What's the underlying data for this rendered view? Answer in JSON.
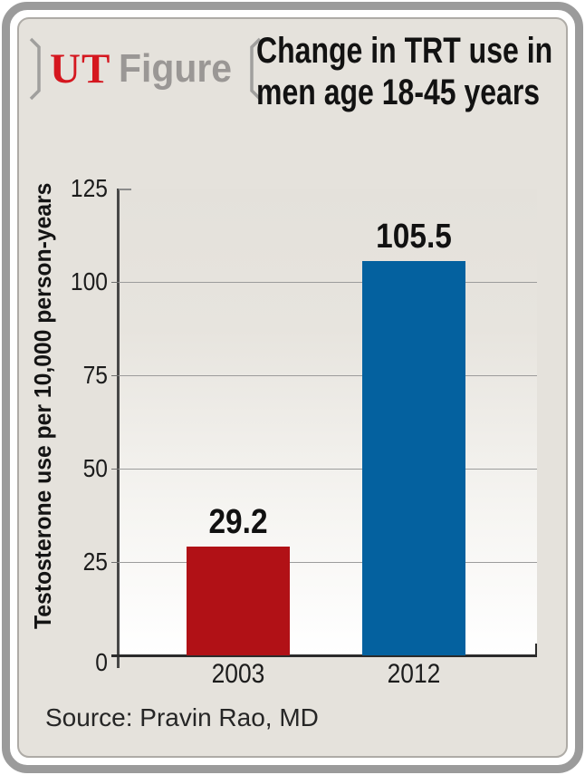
{
  "header": {
    "logo": {
      "ut": "UT",
      "figure": "Figure"
    },
    "title_line1": "Change in TRT use in",
    "title_line2": "men age 18-45 years"
  },
  "chart_data": {
    "type": "bar",
    "title": "Change in TRT use in men age 18-45 years",
    "categories": [
      "2003",
      "2012"
    ],
    "values": [
      29.2,
      105.5
    ],
    "value_labels": [
      "29.2",
      "105.5"
    ],
    "bar_colors": [
      "#b11116",
      "#04619f"
    ],
    "xlabel": "",
    "ylabel": "Testosterone use per 10,000 person-years",
    "ylim": [
      0,
      125
    ],
    "yticks": [
      0,
      25,
      50,
      75,
      100,
      125
    ],
    "gridline_values": [
      25,
      50,
      75,
      100
    ],
    "grid": true,
    "legend_position": "none"
  },
  "footer": {
    "source": "Source: Pravin Rao, MD"
  },
  "colors": {
    "card_background": "#e5e2dc",
    "frame_gray": "#9b9b9b",
    "bar_2003_red": "#b11116",
    "bar_2012_blue": "#04619f",
    "logo_ut_red": "#d5171f",
    "logo_figure_gray": "#9a9795",
    "gridline_gray": "#9c9c9c",
    "axis_dark": "#2b2b2b"
  }
}
